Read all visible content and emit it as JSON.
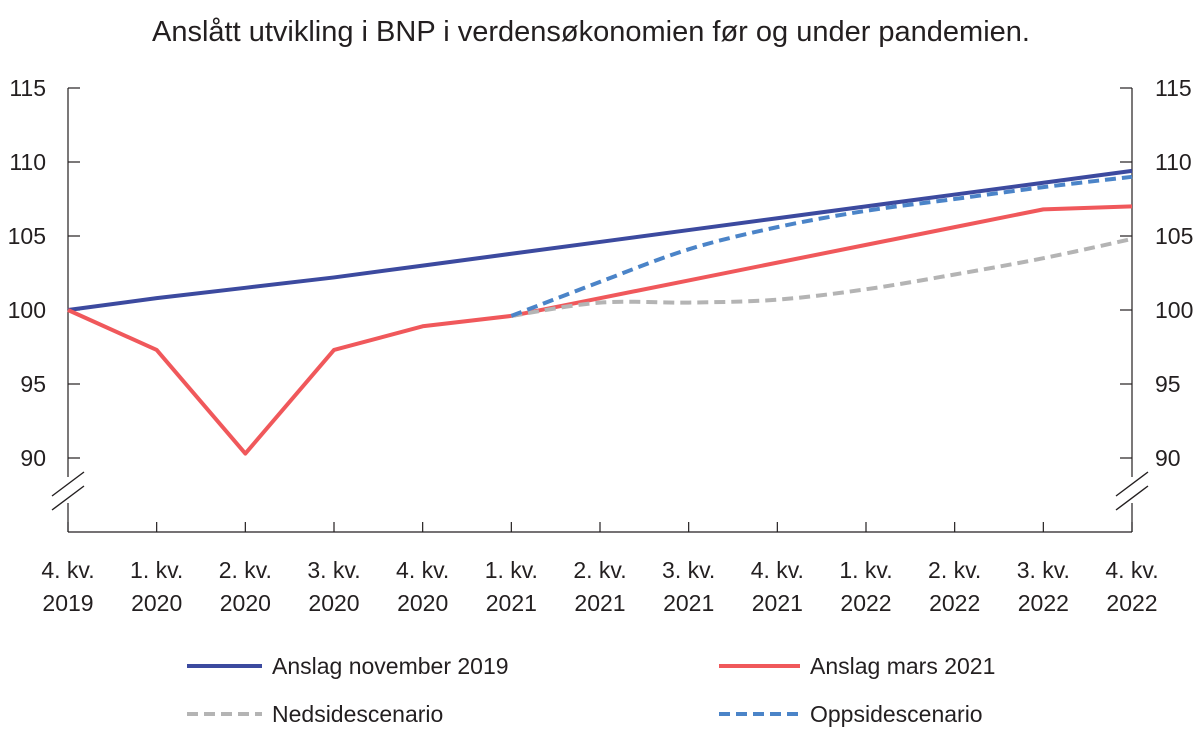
{
  "chart_data": {
    "type": "line",
    "title": "Anslått utvikling i BNP i verdensøkonomien før og under pandemien.",
    "xlabel": "",
    "ylabel": "",
    "categories": [
      [
        "4. kv.",
        "2019"
      ],
      [
        "1. kv.",
        "2020"
      ],
      [
        "2. kv.",
        "2020"
      ],
      [
        "3. kv.",
        "2020"
      ],
      [
        "4. kv.",
        "2020"
      ],
      [
        "1. kv.",
        "2021"
      ],
      [
        "2. kv.",
        "2021"
      ],
      [
        "3. kv.",
        "2021"
      ],
      [
        "4. kv.",
        "2021"
      ],
      [
        "1. kv.",
        "2022"
      ],
      [
        "2. kv.",
        "2022"
      ],
      [
        "3. kv.",
        "2022"
      ],
      [
        "4. kv.",
        "2022"
      ]
    ],
    "yticks": [
      "90",
      "95",
      "100",
      "105",
      "110",
      "115"
    ],
    "ylim": [
      90,
      115
    ],
    "axis_break": true,
    "grid": false,
    "legend_position": "bottom",
    "series": [
      {
        "name": "Anslag november 2019",
        "color": "#3c4a9f",
        "style": "solid",
        "values": [
          100,
          100.8,
          101.5,
          102.2,
          103.0,
          103.8,
          104.6,
          105.4,
          106.2,
          107.0,
          107.8,
          108.6,
          109.4
        ]
      },
      {
        "name": "Anslag mars 2021",
        "color": "#f0585b",
        "style": "solid",
        "values": [
          100,
          97.3,
          90.3,
          97.3,
          98.9,
          99.6,
          100.8,
          102.0,
          103.2,
          104.4,
          105.6,
          106.8,
          107.0
        ]
      },
      {
        "name": "Nedsidescenario",
        "color": "#b4b4b4",
        "style": "dashed",
        "values": [
          null,
          null,
          null,
          null,
          null,
          99.6,
          100.5,
          100.5,
          100.7,
          101.4,
          102.4,
          103.5,
          104.8
        ]
      },
      {
        "name": "Oppsidescenario",
        "color": "#4b84c8",
        "style": "dashed",
        "values": [
          null,
          null,
          null,
          null,
          null,
          99.6,
          101.9,
          104.1,
          105.6,
          106.7,
          107.5,
          108.3,
          109.0
        ]
      }
    ]
  }
}
